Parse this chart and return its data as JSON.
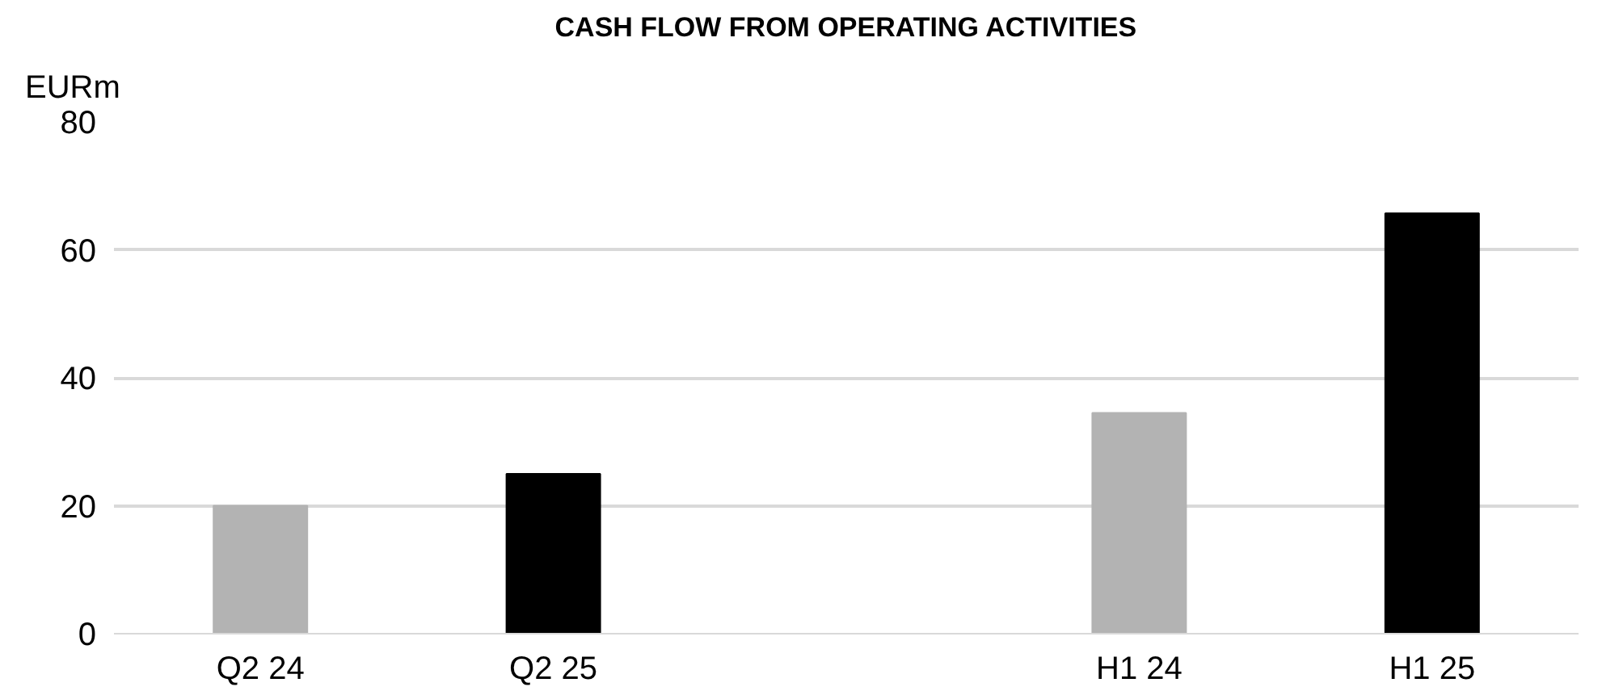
{
  "chart_data": {
    "type": "bar",
    "title": "CASH FLOW FROM OPERATING ACTIVITIES",
    "ylabel": "EURm",
    "categories": [
      "Q2 24",
      "Q2 25",
      null,
      "H1 24",
      "H1 25"
    ],
    "values": [
      20,
      25,
      null,
      34.5,
      65.7
    ],
    "colors": [
      "#b3b3b3",
      "#000000",
      "#b3b3b3",
      "#b3b3b3",
      "#000000"
    ],
    "ylim": [
      0,
      80
    ],
    "yticks": [
      0,
      20,
      40,
      60,
      80
    ],
    "grid": "y"
  }
}
